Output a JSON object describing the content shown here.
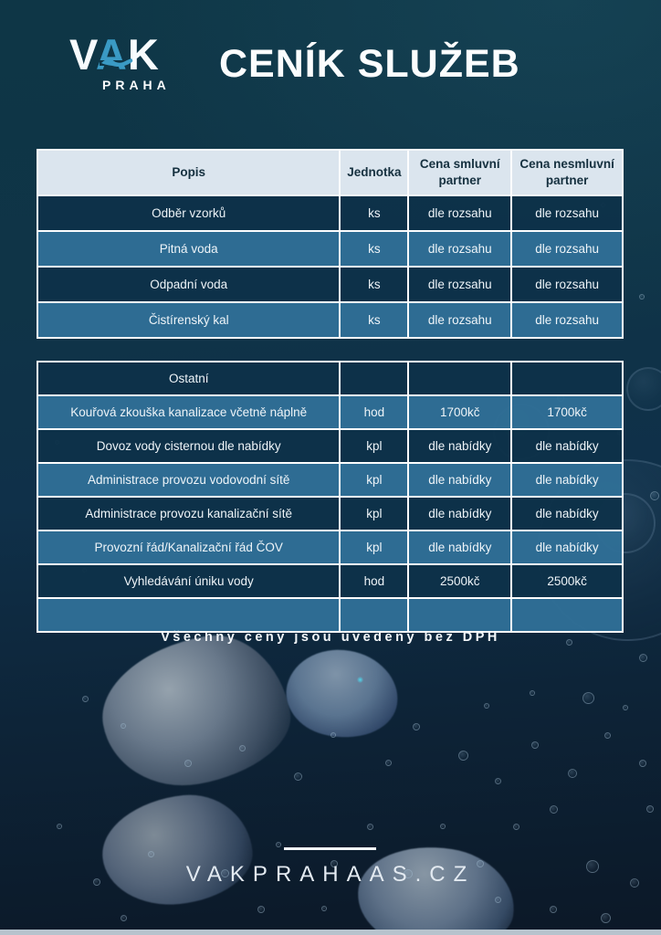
{
  "logo": {
    "v": "V",
    "a": "A",
    "k": "K",
    "subtitle": "PRAHA"
  },
  "title": "CENÍK SLUŽEB",
  "colors": {
    "accent_blue": "#3a9ac4",
    "header_bg": "#dbe5ee",
    "row_dark": "#0d3249",
    "row_mid": "#2f6e96",
    "background_top": "#0e3646",
    "background_bottom": "#0c1827"
  },
  "tables": [
    {
      "headers": [
        "Popis",
        "Jednotka",
        "Cena smluvní partner",
        "Cena nesmluvní partner"
      ],
      "rows": [
        [
          "Odběr vzorků",
          "ks",
          "dle rozsahu",
          "dle rozsahu"
        ],
        [
          "Pitná voda",
          "ks",
          "dle rozsahu",
          "dle rozsahu"
        ],
        [
          "Odpadní voda",
          "ks",
          "dle rozsahu",
          "dle rozsahu"
        ],
        [
          "Čistírenský kal",
          "ks",
          "dle rozsahu",
          "dle rozsahu"
        ]
      ]
    },
    {
      "headers": [],
      "rows": [
        [
          "Ostatní",
          "",
          "",
          ""
        ],
        [
          "Kouřová zkouška kanalizace včetně náplně",
          "hod",
          "1700kč",
          "1700kč"
        ],
        [
          "Dovoz vody cisternou dle nabídky",
          "kpl",
          "dle nabídky",
          "dle nabídky"
        ],
        [
          "Administrace provozu vodovodní sítě",
          "kpl",
          "dle nabídky",
          "dle nabídky"
        ],
        [
          "Administrace provozu kanalizační sítě",
          "kpl",
          "dle nabídky",
          "dle nabídky"
        ],
        [
          "Provozní řád/Kanalizační řád ČOV",
          "kpl",
          "dle nabídky",
          "dle nabídky"
        ],
        [
          "Vyhledávání úniku vody",
          "hod",
          "2500kč",
          "2500kč"
        ],
        [
          "",
          "",
          "",
          ""
        ]
      ]
    }
  ],
  "note": "Všechny ceny jsou uvedeny bez DPH",
  "website": "VAKPRAHAAS.CZ"
}
